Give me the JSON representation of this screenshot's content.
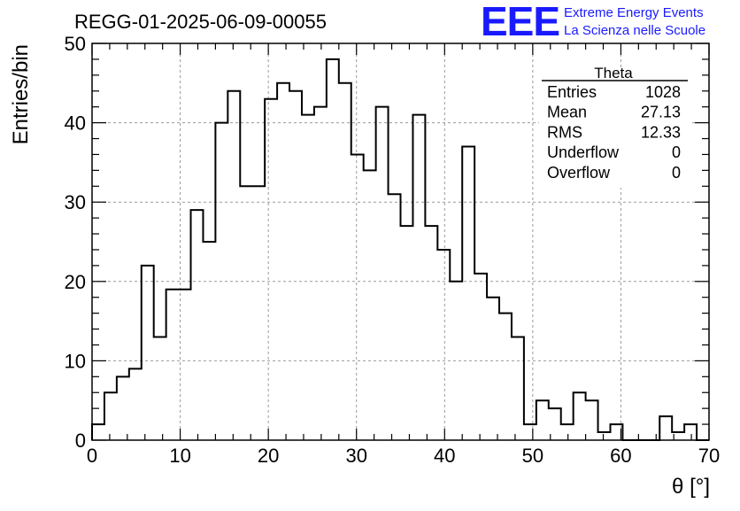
{
  "run_title": "REGG-01-2025-06-09-00055",
  "logo": {
    "mark": "EEE",
    "line1": "Extreme Energy Events",
    "line2": "La Scienza nelle Scuole",
    "color": "#1a1aff"
  },
  "stats_box": {
    "title": "Theta",
    "rows": [
      {
        "label": "Entries",
        "value": "1028"
      },
      {
        "label": "Mean",
        "value": "27.13"
      },
      {
        "label": "RMS",
        "value": "12.33"
      },
      {
        "label": "Underflow",
        "value": "0"
      },
      {
        "label": "Overflow",
        "value": "0"
      }
    ]
  },
  "chart_data": {
    "type": "histogram",
    "title": "REGG-01-2025-06-09-00055",
    "xlabel": "θ [°]",
    "ylabel": "Entries/bin",
    "xlim": [
      0,
      70
    ],
    "ylim": [
      0,
      50
    ],
    "bin_width": 1.4,
    "bin_edges_start": 0,
    "grid": true,
    "line_color": "#000000",
    "values": [
      2,
      6,
      8,
      9,
      22,
      13,
      19,
      19,
      29,
      25,
      40,
      44,
      32,
      32,
      43,
      45,
      44,
      41,
      42,
      48,
      45,
      36,
      34,
      42,
      31,
      27,
      41,
      27,
      24,
      20,
      37,
      21,
      18,
      16,
      13,
      2,
      5,
      4,
      2,
      6,
      5,
      1,
      2,
      0,
      0,
      0,
      3,
      1,
      2,
      0
    ],
    "x_ticks": [
      "0",
      "10",
      "20",
      "30",
      "40",
      "50",
      "60",
      "70"
    ],
    "y_ticks": [
      "0",
      "10",
      "20",
      "30",
      "40",
      "50"
    ]
  }
}
